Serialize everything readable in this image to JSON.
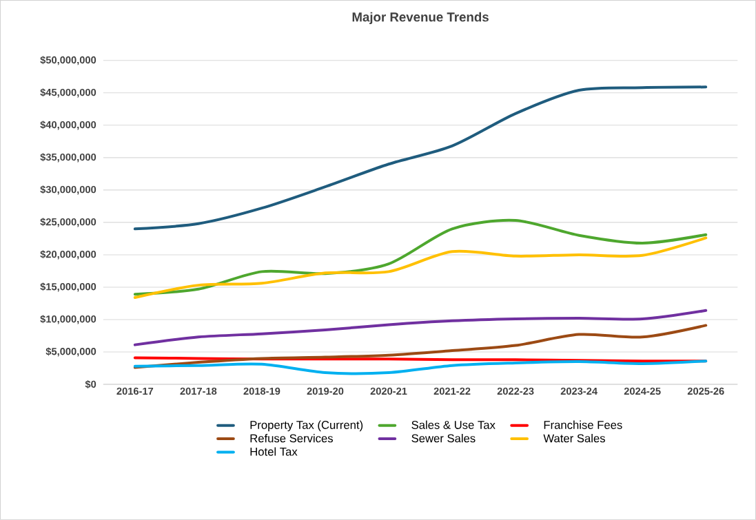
{
  "chart_data": {
    "type": "line",
    "title": "Major Revenue Trends",
    "categories": [
      "2016-17",
      "2017-18",
      "2018-19",
      "2019-20",
      "2020-21",
      "2021-22",
      "2022-23",
      "2023-24",
      "2024-25",
      "2025-26"
    ],
    "series": [
      {
        "name": "Property Tax (Current)",
        "color": "#1f5c7e",
        "values": [
          24000000.0,
          24800000.0,
          27200000.0,
          30500000.0,
          34000000.0,
          36800000.0,
          41800000.0,
          45400000.0,
          45800000.0,
          45900000.0
        ]
      },
      {
        "name": "Sales & Use Tax",
        "color": "#4ea72e",
        "values": [
          13900000.0,
          14700000.0,
          17400000.0,
          17100000.0,
          18600000.0,
          24000000.0,
          25300000.0,
          23000000.0,
          21800000.0,
          23100000.0
        ]
      },
      {
        "name": "Franchise Fees",
        "color": "#ff0000",
        "values": [
          4100000.0,
          4000000.0,
          3900000.0,
          3900000.0,
          3900000.0,
          3800000.0,
          3800000.0,
          3700000.0,
          3600000.0,
          3600000.0
        ]
      },
      {
        "name": "Refuse Services",
        "color": "#9c4a14",
        "values": [
          2600000.0,
          3400000.0,
          4000000.0,
          4200000.0,
          4500000.0,
          5200000.0,
          6000000.0,
          7700000.0,
          7300000.0,
          9100000.0
        ]
      },
      {
        "name": "Sewer Sales",
        "color": "#7030a0",
        "values": [
          6100000.0,
          7300000.0,
          7800000.0,
          8400000.0,
          9200000.0,
          9800000.0,
          10100000.0,
          10200000.0,
          10100000.0,
          11400000.0
        ]
      },
      {
        "name": "Water Sales",
        "color": "#ffc000",
        "values": [
          13400000.0,
          15300000.0,
          15600000.0,
          17200000.0,
          17400000.0,
          20500000.0,
          19800000.0,
          20000000.0,
          19900000.0,
          22600000.0
        ]
      },
      {
        "name": "Hotel Tax",
        "color": "#00b0f0",
        "values": [
          2800000.0,
          2900000.0,
          3100000.0,
          1800000.0,
          1800000.0,
          2900000.0,
          3300000.0,
          3500000.0,
          3200000.0,
          3600000.0
        ]
      }
    ],
    "ylim": [
      0,
      50000000
    ],
    "yticks": [
      {
        "value": 0,
        "label": "$0"
      },
      {
        "value": 5000000,
        "label": "$5,000,000"
      },
      {
        "value": 10000000,
        "label": "$10,000,000"
      },
      {
        "value": 15000000,
        "label": "$15,000,000"
      },
      {
        "value": 20000000,
        "label": "$20,000,000"
      },
      {
        "value": 25000000,
        "label": "$25,000,000"
      },
      {
        "value": 30000000,
        "label": "$30,000,000"
      },
      {
        "value": 35000000,
        "label": "$35,000,000"
      },
      {
        "value": 40000000,
        "label": "$40,000,000"
      },
      {
        "value": 45000000,
        "label": "$45,000,000"
      },
      {
        "value": 50000000,
        "label": "$50,000,000"
      }
    ],
    "grid": "y",
    "legend": "bottom",
    "marker": "none",
    "line_style": "solid"
  }
}
